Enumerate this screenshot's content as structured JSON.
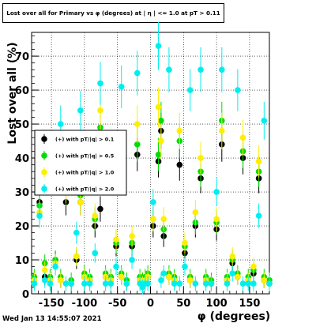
{
  "title": "Lost over all for Primary vs φ (degrees) at | η | <= 1.0 at pT > 0.11",
  "footer": "Wed Jan 13 14:55:07 2021",
  "chart_data": {
    "type": "scatter",
    "xlabel": "φ (degrees)",
    "ylabel": "Lost over all (%)",
    "xlim": [
      -180,
      180
    ],
    "ylim": [
      0,
      77
    ],
    "xticks": [
      -150,
      -100,
      -50,
      0,
      50,
      100,
      150
    ],
    "yticks": [
      0,
      10,
      20,
      30,
      40,
      50,
      60,
      70
    ],
    "grid": true,
    "legend_position": "left-middle",
    "series": [
      {
        "name": "(+) with pT/|q| > 0.1",
        "color": "#000000",
        "x": [
          -176,
          -168,
          -160,
          -152,
          -144,
          -136,
          -128,
          -120,
          -112,
          -106,
          -100,
          -92,
          -84,
          -76,
          -68,
          -60,
          -52,
          -44,
          -36,
          -28,
          -20,
          -16,
          -12,
          -8,
          -4,
          4,
          12,
          16,
          20,
          28,
          36,
          44,
          52,
          60,
          68,
          76,
          84,
          92,
          100,
          108,
          116,
          124,
          132,
          140,
          148,
          156,
          164,
          172,
          180
        ],
        "y": [
          4,
          27,
          5,
          4,
          10,
          4,
          27,
          3,
          10,
          27,
          5,
          4,
          20,
          25,
          5,
          4,
          14,
          5,
          3,
          14,
          41,
          4,
          3,
          4,
          5,
          20,
          39,
          48,
          17,
          5,
          4,
          38,
          12,
          4,
          20,
          34,
          4,
          3,
          19,
          44,
          4,
          9,
          5,
          40,
          4,
          6,
          34,
          4,
          3
        ]
      },
      {
        "name": "(+) with pT/|q| > 0.5",
        "color": "#00dd00",
        "x": [
          -176,
          -168,
          -160,
          -152,
          -144,
          -136,
          -128,
          -120,
          -112,
          -106,
          -100,
          -92,
          -84,
          -76,
          -68,
          -60,
          -52,
          -44,
          -36,
          -28,
          -20,
          -16,
          -12,
          -8,
          -4,
          4,
          12,
          16,
          20,
          28,
          36,
          44,
          52,
          60,
          68,
          76,
          84,
          92,
          100,
          108,
          116,
          124,
          132,
          140,
          148,
          156,
          164,
          172,
          180
        ],
        "y": [
          5,
          26,
          9,
          5,
          10,
          5,
          30,
          4,
          11,
          29,
          6,
          5,
          22,
          49,
          6,
          5,
          15,
          6,
          4,
          15,
          44,
          5,
          4,
          5,
          6,
          22,
          41,
          51,
          19,
          6,
          5,
          45,
          14,
          5,
          21,
          36,
          5,
          4,
          21,
          51,
          5,
          10,
          6,
          42,
          5,
          7,
          36,
          5,
          4
        ]
      },
      {
        "name": "(+) with pT/|q| > 1.0",
        "color": "#ffee00",
        "x": [
          -176,
          -168,
          -160,
          -152,
          -144,
          -136,
          -128,
          -120,
          -112,
          -106,
          -100,
          -92,
          -84,
          -76,
          -68,
          -60,
          -52,
          -44,
          -36,
          -28,
          -20,
          -16,
          -12,
          -8,
          -4,
          4,
          12,
          16,
          20,
          28,
          36,
          44,
          52,
          60,
          68,
          76,
          84,
          92,
          100,
          108,
          116,
          124,
          132,
          140,
          148,
          156,
          164,
          172,
          180
        ],
        "y": [
          4,
          24,
          7,
          4,
          9,
          4,
          31,
          3,
          11,
          27,
          5,
          4,
          23,
          54,
          5,
          4,
          16,
          5,
          3,
          17,
          50,
          4,
          3,
          4,
          5,
          22,
          55,
          45,
          22,
          5,
          4,
          48,
          15,
          4,
          24,
          40,
          4,
          3,
          22,
          48,
          4,
          11,
          5,
          46,
          4,
          8,
          39,
          4,
          3
        ]
      },
      {
        "name": "(+) with pT/|q| > 2.0",
        "color": "#00eeee",
        "x": [
          -176,
          -168,
          -160,
          -152,
          -144,
          -136,
          -128,
          -120,
          -112,
          -106,
          -100,
          -92,
          -84,
          -76,
          -68,
          -60,
          -52,
          -44,
          -36,
          -28,
          -20,
          -16,
          -12,
          -8,
          -4,
          4,
          12,
          16,
          20,
          28,
          36,
          44,
          52,
          60,
          68,
          76,
          84,
          92,
          100,
          108,
          116,
          124,
          132,
          140,
          148,
          156,
          164,
          172,
          180
        ],
        "y": [
          3,
          23,
          4,
          3,
          8,
          50,
          3,
          3,
          18,
          54,
          3,
          3,
          12,
          62,
          3,
          3,
          8,
          61,
          3,
          10,
          65,
          3,
          2,
          3,
          3,
          27,
          73,
          4,
          6,
          66,
          3,
          3,
          8,
          60,
          3,
          66,
          3,
          3,
          30,
          66,
          3,
          6,
          60,
          3,
          3,
          3,
          23,
          51,
          3
        ]
      }
    ]
  }
}
